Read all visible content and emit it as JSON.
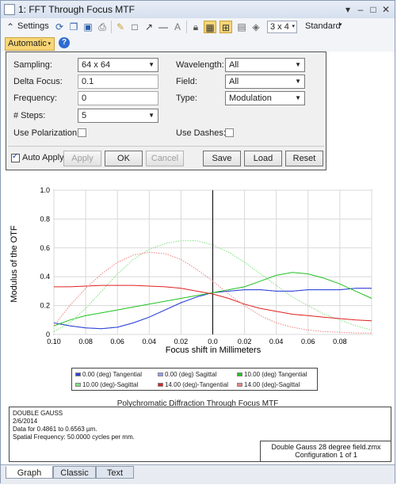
{
  "window": {
    "title": "1: FFT Through Focus MTF"
  },
  "toolbar": {
    "settings_label": "Settings",
    "layout_value": "3 x 4",
    "standard_label": "Standard",
    "automatic_label": "Automatic"
  },
  "form": {
    "sampling_label": "Sampling:",
    "sampling_value": "64 x 64",
    "delta_focus_label": "Delta Focus:",
    "delta_focus_value": "0.1",
    "frequency_label": "Frequency:",
    "frequency_value": "0",
    "steps_label": "# Steps:",
    "steps_value": "5",
    "polarization_label": "Use Polarization:",
    "wavelength_label": "Wavelength:",
    "wavelength_value": "All",
    "field_label": "Field:",
    "field_value": "All",
    "type_label": "Type:",
    "type_value": "Modulation",
    "dashes_label": "Use Dashes:",
    "auto_apply_label": "Auto Apply",
    "apply_label": "Apply",
    "ok_label": "OK",
    "cancel_label": "Cancel",
    "save_label": "Save",
    "load_label": "Load",
    "reset_label": "Reset"
  },
  "chart_data": {
    "type": "line",
    "xlabel": "Focus shift in Millimeters",
    "ylabel": "Modulus of the OTF",
    "xlim": [
      -0.1,
      0.1
    ],
    "ylim": [
      0,
      1.0
    ],
    "xticks": [
      "0.10",
      "0.08",
      "0.06",
      "0.04",
      "0.02",
      "0.0",
      "0.02",
      "0.04",
      "0.06",
      "0.08"
    ],
    "yticks": [
      "0",
      "0.2",
      "0.4",
      "0.6",
      "0.8",
      "1.0"
    ],
    "series": [
      {
        "name": "0.00 (deg) Tangential",
        "color": "#2b3fd6",
        "dashed": false,
        "x": [
          -0.1,
          -0.09,
          -0.08,
          -0.07,
          -0.06,
          -0.05,
          -0.04,
          -0.03,
          -0.02,
          -0.01,
          0,
          0.01,
          0.02,
          0.03,
          0.04,
          0.05,
          0.06,
          0.07,
          0.08,
          0.09,
          0.1
        ],
        "y": [
          0.08,
          0.06,
          0.045,
          0.04,
          0.05,
          0.08,
          0.12,
          0.17,
          0.22,
          0.26,
          0.29,
          0.3,
          0.31,
          0.31,
          0.3,
          0.3,
          0.31,
          0.31,
          0.31,
          0.32,
          0.32
        ]
      },
      {
        "name": "0.00 (deg) Sagittal",
        "color": "#2b3fd6",
        "dashed": true,
        "x": [
          -0.1,
          -0.09,
          -0.08,
          -0.07,
          -0.06,
          -0.05,
          -0.04,
          -0.03,
          -0.02,
          -0.01,
          0,
          0.01,
          0.02,
          0.03,
          0.04,
          0.05,
          0.06,
          0.07,
          0.08,
          0.09,
          0.1
        ],
        "y": [
          0.08,
          0.06,
          0.045,
          0.04,
          0.05,
          0.08,
          0.12,
          0.17,
          0.22,
          0.26,
          0.29,
          0.3,
          0.31,
          0.31,
          0.3,
          0.3,
          0.31,
          0.31,
          0.31,
          0.32,
          0.32
        ]
      },
      {
        "name": "10.00 (deg) Tangential",
        "color": "#1fc21f",
        "dashed": false,
        "x": [
          -0.1,
          -0.09,
          -0.08,
          -0.07,
          -0.06,
          -0.05,
          -0.04,
          -0.03,
          -0.02,
          -0.01,
          0,
          0.01,
          0.02,
          0.03,
          0.04,
          0.05,
          0.06,
          0.07,
          0.08,
          0.09,
          0.1
        ],
        "y": [
          0.06,
          0.1,
          0.13,
          0.15,
          0.17,
          0.19,
          0.21,
          0.23,
          0.25,
          0.27,
          0.29,
          0.31,
          0.33,
          0.37,
          0.41,
          0.43,
          0.42,
          0.39,
          0.35,
          0.3,
          0.25
        ]
      },
      {
        "name": "10.00 (deg)-Sagittal",
        "color": "#7fe07f",
        "dashed": true,
        "x": [
          -0.1,
          -0.09,
          -0.08,
          -0.07,
          -0.06,
          -0.05,
          -0.04,
          -0.03,
          -0.02,
          -0.01,
          0,
          0.01,
          0.02,
          0.03,
          0.04,
          0.05,
          0.06,
          0.07,
          0.08,
          0.09,
          0.1
        ],
        "y": [
          0.02,
          0.08,
          0.18,
          0.3,
          0.42,
          0.52,
          0.59,
          0.63,
          0.65,
          0.65,
          0.62,
          0.57,
          0.5,
          0.42,
          0.34,
          0.26,
          0.2,
          0.14,
          0.1,
          0.06,
          0.03
        ]
      },
      {
        "name": "14.00 (deg)-Tangential",
        "color": "#e02020",
        "dashed": false,
        "x": [
          -0.1,
          -0.09,
          -0.08,
          -0.07,
          -0.06,
          -0.05,
          -0.04,
          -0.03,
          -0.02,
          -0.01,
          0,
          0.01,
          0.02,
          0.03,
          0.04,
          0.05,
          0.06,
          0.07,
          0.08,
          0.09,
          0.1
        ],
        "y": [
          0.33,
          0.33,
          0.335,
          0.34,
          0.34,
          0.34,
          0.335,
          0.33,
          0.32,
          0.3,
          0.28,
          0.25,
          0.21,
          0.18,
          0.16,
          0.14,
          0.13,
          0.12,
          0.11,
          0.1,
          0.095
        ]
      },
      {
        "name": "14.00 (deg)-Sagittal",
        "color": "#f08080",
        "dashed": true,
        "x": [
          -0.1,
          -0.09,
          -0.08,
          -0.07,
          -0.06,
          -0.05,
          -0.04,
          -0.03,
          -0.02,
          -0.01,
          0,
          0.01,
          0.02,
          0.03,
          0.04,
          0.05,
          0.06,
          0.07,
          0.08,
          0.09,
          0.1
        ],
        "y": [
          0.06,
          0.2,
          0.32,
          0.42,
          0.5,
          0.55,
          0.57,
          0.56,
          0.52,
          0.45,
          0.37,
          0.28,
          0.2,
          0.13,
          0.08,
          0.05,
          0.03,
          0.02,
          0.015,
          0.01,
          0.01
        ]
      }
    ]
  },
  "legend": [
    "0.00 (deg) Tangential",
    "0.00 (deg) Sagittal",
    "10.00 (deg) Tangential",
    "10.00 (deg)-Sagittal",
    "14.00 (deg)-Tangential",
    "14.00 (deg)-Sagittal"
  ],
  "caption": "Polychromatic Diffraction Through Focus MTF",
  "info": {
    "line1": "DOUBLE GAUSS",
    "line2": "2/6/2014",
    "line3": "Data for 0.4861 to 0.6563 µm.",
    "line4": "Spatial Frequency: 50.0000 cycles per mm.",
    "file": "Double Gauss 28 degree field.zmx",
    "config": "Configuration 1 of 1"
  },
  "tabs": [
    "Graph",
    "Classic",
    "Text"
  ]
}
